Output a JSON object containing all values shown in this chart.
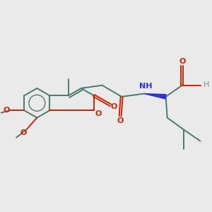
{
  "background_color": "#eaeaea",
  "bond_color": "#4a7a6a",
  "oxygen_color": "#cc2200",
  "nitrogen_color": "#3333cc",
  "h_color": "#888888",
  "linewidth": 1.4,
  "figsize": [
    3.0,
    3.0
  ],
  "dpi": 100,
  "xlim": [
    -1.2,
    5.8
  ],
  "ylim": [
    -2.2,
    2.0
  ]
}
